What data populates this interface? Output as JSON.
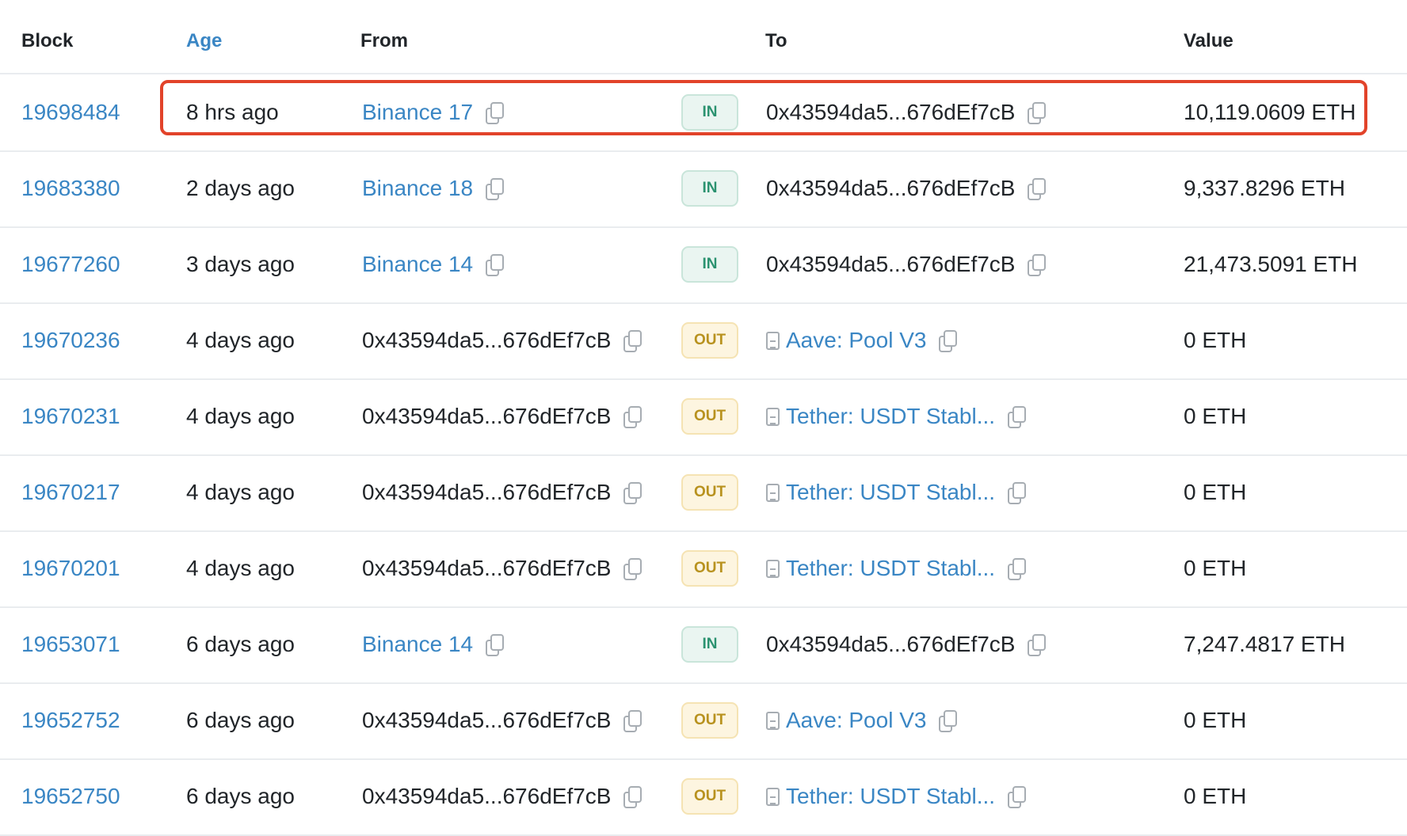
{
  "headers": {
    "block": "Block",
    "age": "Age",
    "from": "From",
    "to": "To",
    "value": "Value"
  },
  "colors": {
    "link": "#3a86c4",
    "in_badge": "#2b9270",
    "out_badge": "#b8921f",
    "highlight": "#e2432a"
  },
  "rows": [
    {
      "block": "19698484",
      "age": "8 hrs ago",
      "from": "Binance 17",
      "from_link": true,
      "dir": "IN",
      "to": "0x43594da5...676dEf7cB",
      "to_link": false,
      "to_contract": false,
      "value": "10,119.0609 ETH"
    },
    {
      "block": "19683380",
      "age": "2 days ago",
      "from": "Binance 18",
      "from_link": true,
      "dir": "IN",
      "to": "0x43594da5...676dEf7cB",
      "to_link": false,
      "to_contract": false,
      "value": "9,337.8296 ETH"
    },
    {
      "block": "19677260",
      "age": "3 days ago",
      "from": "Binance 14",
      "from_link": true,
      "dir": "IN",
      "to": "0x43594da5...676dEf7cB",
      "to_link": false,
      "to_contract": false,
      "value": "21,473.5091 ETH"
    },
    {
      "block": "19670236",
      "age": "4 days ago",
      "from": "0x43594da5...676dEf7cB",
      "from_link": false,
      "dir": "OUT",
      "to": "Aave: Pool V3",
      "to_link": true,
      "to_contract": true,
      "value": "0 ETH"
    },
    {
      "block": "19670231",
      "age": "4 days ago",
      "from": "0x43594da5...676dEf7cB",
      "from_link": false,
      "dir": "OUT",
      "to": "Tether: USDT Stabl...",
      "to_link": true,
      "to_contract": true,
      "value": "0 ETH"
    },
    {
      "block": "19670217",
      "age": "4 days ago",
      "from": "0x43594da5...676dEf7cB",
      "from_link": false,
      "dir": "OUT",
      "to": "Tether: USDT Stabl...",
      "to_link": true,
      "to_contract": true,
      "value": "0 ETH"
    },
    {
      "block": "19670201",
      "age": "4 days ago",
      "from": "0x43594da5...676dEf7cB",
      "from_link": false,
      "dir": "OUT",
      "to": "Tether: USDT Stabl...",
      "to_link": true,
      "to_contract": true,
      "value": "0 ETH"
    },
    {
      "block": "19653071",
      "age": "6 days ago",
      "from": "Binance 14",
      "from_link": true,
      "dir": "IN",
      "to": "0x43594da5...676dEf7cB",
      "to_link": false,
      "to_contract": false,
      "value": "7,247.4817 ETH"
    },
    {
      "block": "19652752",
      "age": "6 days ago",
      "from": "0x43594da5...676dEf7cB",
      "from_link": false,
      "dir": "OUT",
      "to": "Aave: Pool V3",
      "to_link": true,
      "to_contract": true,
      "value": "0 ETH"
    },
    {
      "block": "19652750",
      "age": "6 days ago",
      "from": "0x43594da5...676dEf7cB",
      "from_link": false,
      "dir": "OUT",
      "to": "Tether: USDT Stabl...",
      "to_link": true,
      "to_contract": true,
      "value": "0 ETH"
    }
  ]
}
